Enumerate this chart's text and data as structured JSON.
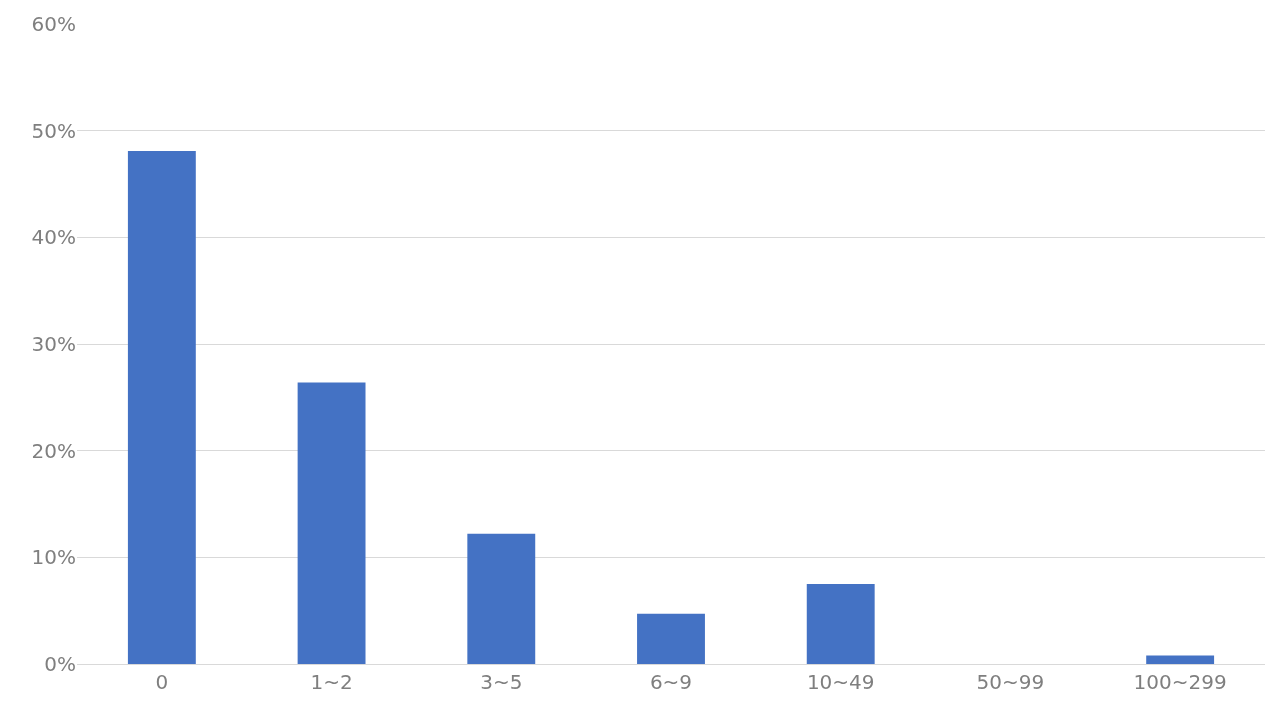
{
  "chart_data": {
    "type": "bar",
    "categories": [
      "0",
      "1~2",
      "3~5",
      "6~9",
      "10~49",
      "50~99",
      "100~299"
    ],
    "values": [
      48.1,
      26.4,
      12.2,
      4.7,
      7.5,
      0,
      0.8
    ],
    "color": "#4472c4",
    "ylim": [
      0,
      60
    ],
    "yticks": [
      {
        "value": 0,
        "label": "0%"
      },
      {
        "value": 10,
        "label": "10%"
      },
      {
        "value": 20,
        "label": "20%"
      },
      {
        "value": 30,
        "label": "30%"
      },
      {
        "value": 40,
        "label": "40%"
      },
      {
        "value": 50,
        "label": "50%"
      },
      {
        "value": 60,
        "label": "60%"
      }
    ],
    "grid": "y"
  }
}
